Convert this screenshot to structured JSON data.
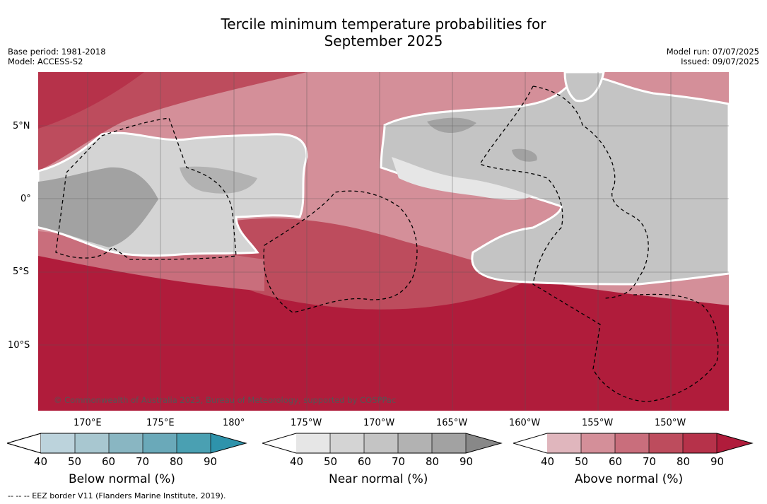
{
  "title_line1": "Tercile minimum temperature probabilities for",
  "title_line2": "September 2025",
  "base_period": "Base period: 1981-2018",
  "model": "Model: ACCESS-S2",
  "model_run": "Model run: 07/07/2025",
  "issued": "Issued: 09/07/2025",
  "copyright": "© Commonwealth of Australia 2025, Bureau of Meteorology, supported by COSPPac",
  "lat_labels": [
    "5°N",
    "0°",
    "5°S",
    "10°S"
  ],
  "lon_labels": [
    "170°E",
    "175°E",
    "180°",
    "175°W",
    "170°W",
    "165°W",
    "160°W",
    "155°W",
    "150°W"
  ],
  "colorbars": [
    {
      "title": "Below normal (%)",
      "ticks": [
        "40",
        "50",
        "60",
        "70",
        "80",
        "90"
      ],
      "colors": [
        "#ffffff",
        "#bcd3dc",
        "#a8c7d0",
        "#89b6c2",
        "#6aa9b9",
        "#4aa0b2",
        "#2e93ab"
      ]
    },
    {
      "title": "Near normal (%)",
      "ticks": [
        "40",
        "50",
        "60",
        "70",
        "80",
        "90"
      ],
      "colors": [
        "#ffffff",
        "#e6e6e6",
        "#d4d4d4",
        "#c4c4c4",
        "#b2b2b2",
        "#a2a2a2",
        "#888888"
      ]
    },
    {
      "title": "Above normal (%)",
      "ticks": [
        "40",
        "50",
        "60",
        "70",
        "80",
        "90"
      ],
      "colors": [
        "#ffffff",
        "#e0b6bd",
        "#d48f99",
        "#c96e7c",
        "#bd4c5d",
        "#b6324a",
        "#b01c3b"
      ]
    }
  ],
  "eez_note": "--  --  -- EEZ border V11 (Flanders Marine Institute, 2019)."
}
